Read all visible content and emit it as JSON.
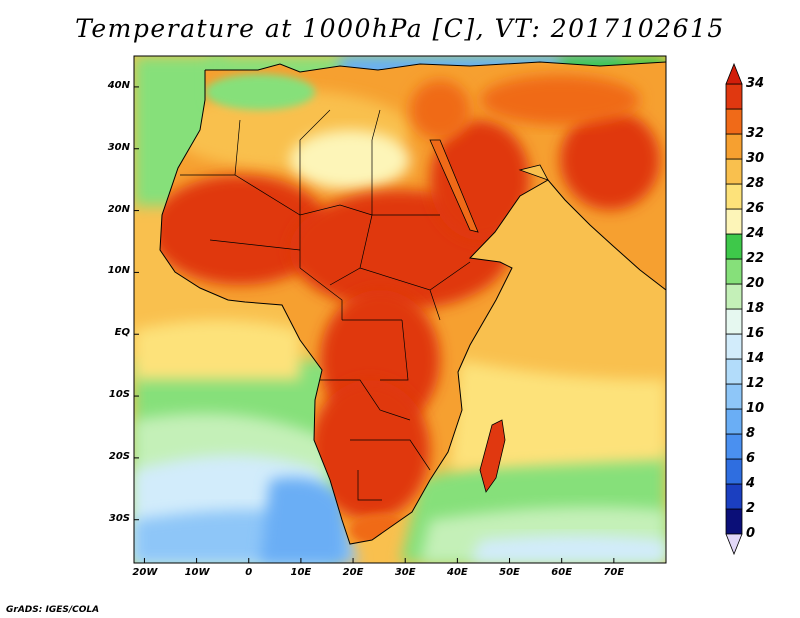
{
  "title": "Temperature at 1000hPa [C], VT: 2017102615",
  "credit": "GrADS: IGES/COLA",
  "map": {
    "region": "Africa and surrounding seas",
    "lon_range": [
      -22,
      80
    ],
    "lat_range": [
      -37,
      45
    ],
    "lon_ticks": [
      {
        "value": -20,
        "label": "20W"
      },
      {
        "value": -10,
        "label": "10W"
      },
      {
        "value": 0,
        "label": "0"
      },
      {
        "value": 10,
        "label": "10E"
      },
      {
        "value": 20,
        "label": "20E"
      },
      {
        "value": 30,
        "label": "30E"
      },
      {
        "value": 40,
        "label": "40E"
      },
      {
        "value": 50,
        "label": "50E"
      },
      {
        "value": 60,
        "label": "60E"
      },
      {
        "value": 70,
        "label": "70E"
      }
    ],
    "lat_ticks": [
      {
        "value": 40,
        "label": "40N"
      },
      {
        "value": 30,
        "label": "30N"
      },
      {
        "value": 20,
        "label": "20N"
      },
      {
        "value": 10,
        "label": "10N"
      },
      {
        "value": 0,
        "label": "EQ"
      },
      {
        "value": -10,
        "label": "10S"
      },
      {
        "value": -20,
        "label": "20S"
      },
      {
        "value": -30,
        "label": "30S"
      }
    ]
  },
  "colorbar": {
    "levels": [
      {
        "value": "0",
        "color": "#0b0f78"
      },
      {
        "value": "2",
        "color": "#1b3fc0"
      },
      {
        "value": "4",
        "color": "#2f6ee0"
      },
      {
        "value": "6",
        "color": "#4a90f0"
      },
      {
        "value": "8",
        "color": "#6aaef5"
      },
      {
        "value": "10",
        "color": "#8ec6f8"
      },
      {
        "value": "12",
        "color": "#b2dcfa"
      },
      {
        "value": "14",
        "color": "#d2ecfb"
      },
      {
        "value": "16",
        "color": "#e6f8f0"
      },
      {
        "value": "18",
        "color": "#c4f0b8"
      },
      {
        "value": "20",
        "color": "#86e07a"
      },
      {
        "value": "22",
        "color": "#3ec84a"
      },
      {
        "value": "24",
        "color": "#fdf5b8"
      },
      {
        "value": "26",
        "color": "#fde27a"
      },
      {
        "value": "28",
        "color": "#f9c04e"
      },
      {
        "value": "30",
        "color": "#f6a030"
      },
      {
        "value": "32",
        "color": "#f06a18"
      },
      {
        "value": "34",
        "color": "#e03810"
      }
    ],
    "top_arrow_color": "#d21e0a",
    "bottom_arrow_color": "#e2d8f8"
  }
}
